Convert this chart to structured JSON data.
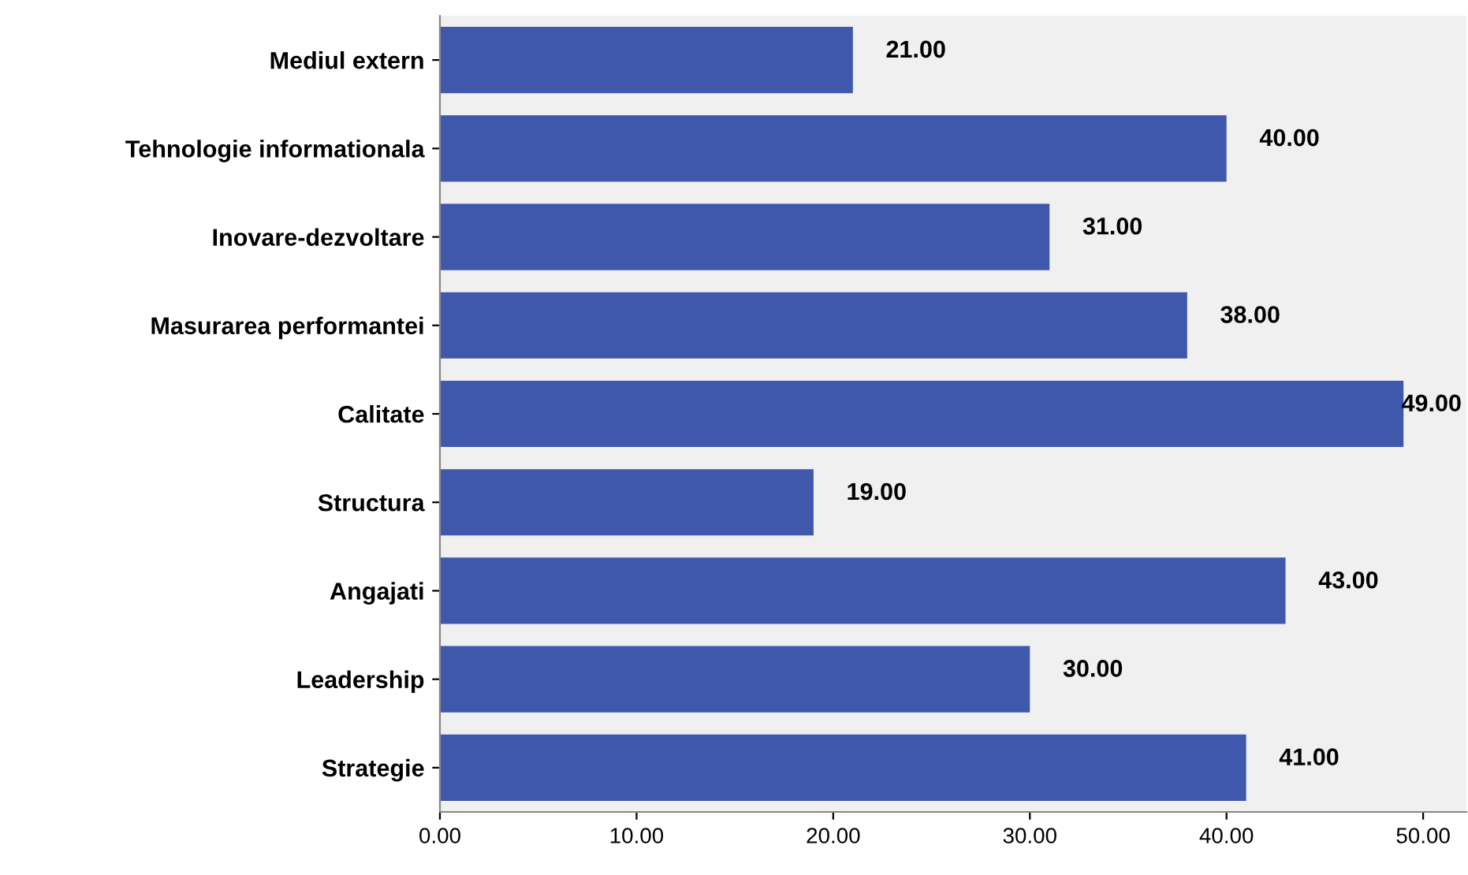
{
  "chart_data": {
    "type": "bar",
    "orientation": "horizontal",
    "categories": [
      "Mediul extern",
      "Tehnologie informationala",
      "Inovare-dezvoltare",
      "Masurarea performantei",
      "Calitate",
      "Structura",
      "Angajati",
      "Leadership",
      "Strategie"
    ],
    "values": [
      21,
      40,
      31,
      38,
      49,
      19,
      43,
      30,
      41
    ],
    "value_labels": [
      "21.00",
      "40.00",
      "31.00",
      "38.00",
      "49.00",
      "19.00",
      "43.00",
      "30.00",
      "41.00"
    ],
    "color": "#3f58ab",
    "xlim": [
      0,
      52.2
    ],
    "xticks": [
      {
        "value": 0,
        "label": "0.00"
      },
      {
        "value": 10,
        "label": "10.00"
      },
      {
        "value": 20,
        "label": "20.00"
      },
      {
        "value": 30,
        "label": "30.00"
      },
      {
        "value": 40,
        "label": "40.00"
      },
      {
        "value": 50,
        "label": "50.00"
      }
    ],
    "grid": false
  }
}
